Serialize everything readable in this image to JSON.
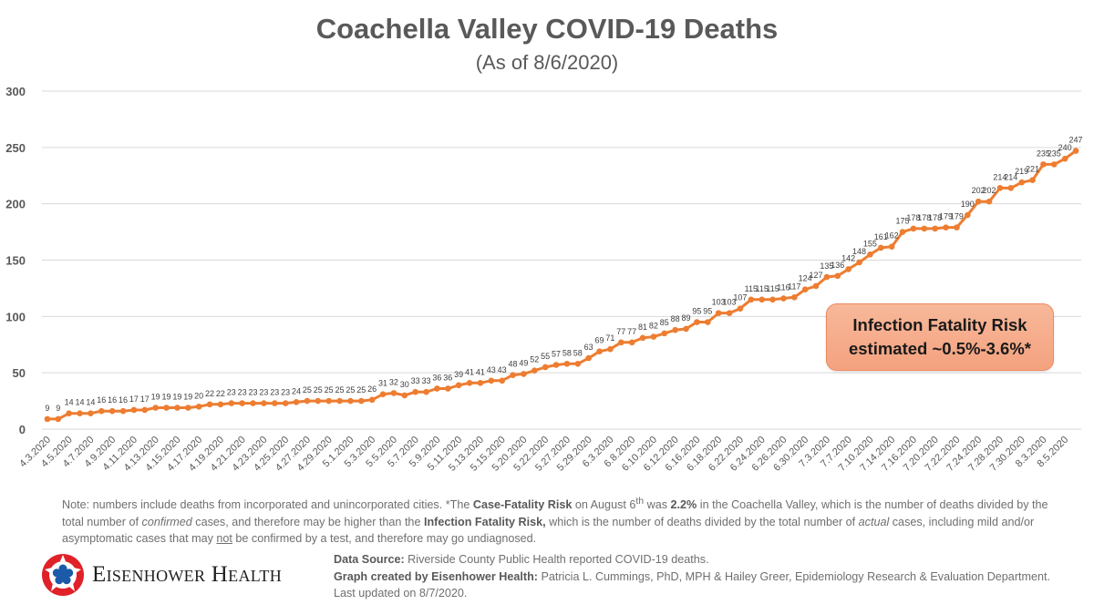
{
  "chart_data": {
    "type": "line",
    "title": "Coachella Valley COVID-19 Deaths",
    "subtitle": "(As of 8/6/2020)",
    "xlabel": "",
    "ylabel": "",
    "ylim": [
      0,
      300
    ],
    "yticks": [
      0,
      50,
      100,
      150,
      200,
      250,
      300
    ],
    "grid": true,
    "legend": "none",
    "series_color": "#ed7d31",
    "tick_labels": [
      "4.3.2020",
      "4.5.2020",
      "4.7.2020",
      "4.9.2020",
      "4.11.2020",
      "4.13.2020",
      "4.15.2020",
      "4.17.2020",
      "4.19.2020",
      "4.21.2020",
      "4.23.2020",
      "4.25.2020",
      "4.27.2020",
      "4.29.2020",
      "5.1.2020",
      "5.3.2020",
      "5.5.2020",
      "5.7.2020",
      "5.9.2020",
      "5.11.2020",
      "5.13.2020",
      "5.15.2020",
      "5.20.2020",
      "5.22.2020",
      "5.27.2020",
      "5.29.2020",
      "6.3.2020",
      "6.8.2020",
      "6.10.2020",
      "6.12.2020",
      "6.16.2020",
      "6.18.2020",
      "6.22.2020",
      "6.24.2020",
      "6.26.2020",
      "6.30.2020",
      "7.3.2020",
      "7.7.2020",
      "7.10.2020",
      "7.14.2020",
      "7.16.2020",
      "7.20.2020",
      "7.22.2020",
      "7.24.2020",
      "7.28.2020",
      "7.30.2020",
      "8.3.2020",
      "8.5.2020"
    ],
    "series": [
      {
        "name": "Deaths",
        "values": [
          9,
          9,
          14,
          14,
          14,
          16,
          16,
          16,
          17,
          17,
          19,
          19,
          19,
          19,
          20,
          22,
          22,
          23,
          23,
          23,
          23,
          23,
          23,
          24,
          25,
          25,
          25,
          25,
          25,
          25,
          26,
          31,
          32,
          30,
          33,
          33,
          36,
          36,
          39,
          41,
          41,
          43,
          43,
          48,
          49,
          52,
          55,
          57,
          58,
          58,
          63,
          69,
          71,
          77,
          77,
          81,
          82,
          85,
          88,
          89,
          95,
          95,
          103,
          103,
          107,
          115,
          115,
          115,
          116,
          117,
          124,
          127,
          135,
          136,
          142,
          148,
          155,
          161,
          162,
          175,
          178,
          178,
          178,
          179,
          179,
          190,
          202,
          202,
          214,
          214,
          219,
          221,
          235,
          235,
          240,
          247
        ]
      }
    ]
  },
  "callout": {
    "line1": "Infection Fatality Risk",
    "line2": "estimated ~0.5%-3.6%*"
  },
  "note": {
    "p1": "Note: numbers include deaths from incorporated and unincorporated cities. *The ",
    "b1": "Case-Fatality Risk",
    "p2": " on August 6",
    "sup": "th",
    "p3": " was ",
    "b2": "2.2%",
    "p4": " in the Coachella Valley, which is the number of deaths divided by the total number of ",
    "i1": "confirmed",
    "p5": " cases, and therefore may be higher than the ",
    "b3": "Infection Fatality Risk,",
    "p6": " which is the number of deaths divided by the total number of ",
    "i2": "actual",
    "p7": " cases, including mild and/or asymptomatic cases that may ",
    "u1": "not",
    "p8": " be confirmed by a test, and therefore may go undiagnosed."
  },
  "logo": {
    "text": "Eisenhower Health",
    "icon": "eisenhower-star-logo"
  },
  "footer": {
    "source_label": "Data Source:",
    "source_text": " Riverside County Public Health reported COVID-19 deaths.",
    "credit_label": "Graph created by Eisenhower Health:",
    "credit_text": " Patricia L. Cummings, PhD, MPH & Hailey Greer, Epidemiology Research & Evaluation Department. Last updated on 8/7/2020."
  }
}
